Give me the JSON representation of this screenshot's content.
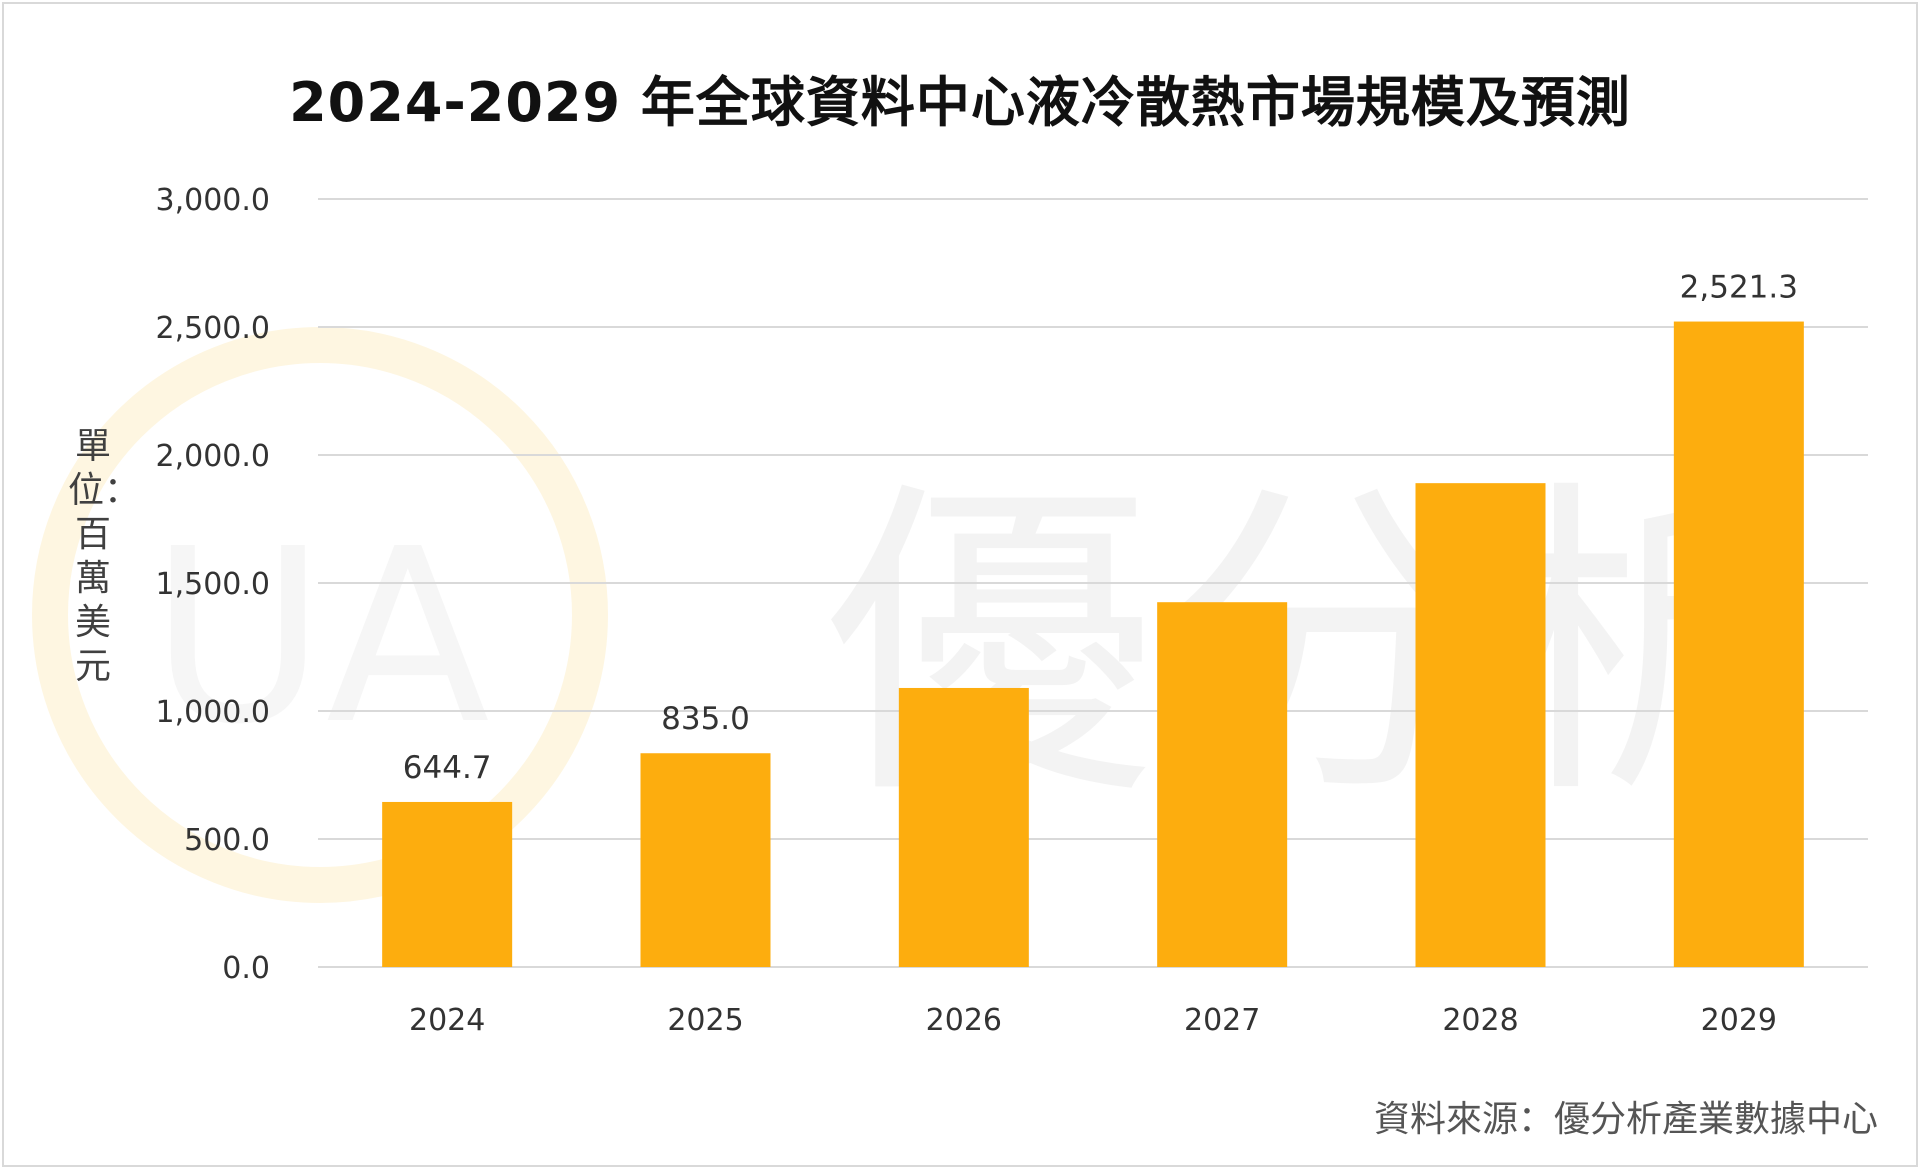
{
  "page": {
    "title": "2024-2029 年全球資料中心液冷散熱市場規模及預測",
    "unit_label": "單位：百萬美元",
    "source": "資料來源：優分析產業數據中心",
    "watermark_text": "優分析",
    "watermark_logo": "UA"
  },
  "colors": {
    "bar": "#FDAD0E",
    "grid": "#D9D9D9",
    "watermark_ring": "#FDEFC9"
  },
  "chart_data": {
    "type": "bar",
    "title": "2024-2029 年全球資料中心液冷散熱市場規模及預測",
    "xlabel": "",
    "ylabel": "單位：百萬美元",
    "categories": [
      "2024",
      "2025",
      "2026",
      "2027",
      "2028",
      "2029"
    ],
    "values": [
      644.7,
      835.0,
      1090.0,
      1425.0,
      1890.0,
      2521.3
    ],
    "data_labels": [
      "644.7",
      "835.0",
      null,
      null,
      null,
      "2,521.3"
    ],
    "ylim": [
      0,
      3000
    ],
    "yticks": [
      0,
      500,
      1000,
      1500,
      2000,
      2500,
      3000
    ],
    "ytick_labels": [
      "0.0",
      "500.0",
      "1,000.0",
      "1,500.0",
      "2,000.0",
      "2,500.0",
      "3,000.0"
    ],
    "grid": true,
    "legend": "none"
  }
}
